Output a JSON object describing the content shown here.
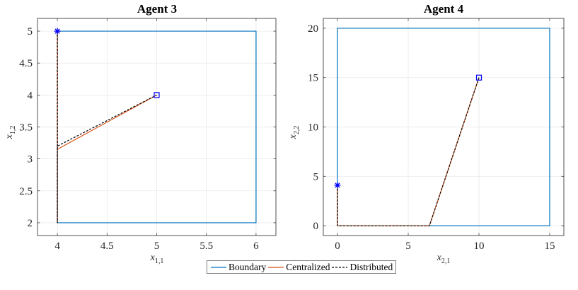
{
  "legend": {
    "items": [
      {
        "label": "Boundary",
        "color": "#0072BD",
        "dash": ""
      },
      {
        "label": "Centralized",
        "color": "#D95319",
        "dash": ""
      },
      {
        "label": "Distributed",
        "color": "#000000",
        "dash": "3,2"
      }
    ]
  },
  "chart_data": [
    {
      "type": "line",
      "title": "Agent 3",
      "xlabel": "x1,1",
      "ylabel": "x1,2",
      "xlim": [
        3.8,
        6.2
      ],
      "ylim": [
        1.8,
        5.2
      ],
      "xticks": [
        4,
        4.5,
        5,
        5.5,
        6
      ],
      "yticks": [
        2,
        2.5,
        3,
        3.5,
        4,
        4.5,
        5
      ],
      "xticklabels": [
        "4",
        "4.5",
        "5",
        "5.5",
        "6"
      ],
      "yticklabels": [
        "2",
        "2.5",
        "3",
        "3.5",
        "4",
        "4.5",
        "5"
      ],
      "grid": true,
      "series": [
        {
          "name": "Boundary",
          "color": "#0072BD",
          "x": [
            4,
            6,
            6,
            4,
            4
          ],
          "y": [
            2,
            2,
            5,
            5,
            2
          ]
        },
        {
          "name": "Centralized",
          "color": "#D95319",
          "x": [
            4,
            4,
            4,
            5
          ],
          "y": [
            5,
            2,
            3.15,
            4
          ]
        },
        {
          "name": "Distributed",
          "color": "#000000",
          "dash": "3,2",
          "x": [
            4,
            4,
            4,
            5
          ],
          "y": [
            5,
            2,
            3.2,
            4
          ]
        }
      ],
      "start_marker": {
        "x": 4,
        "y": 5,
        "symbol": "asterisk",
        "color": "#0000FF"
      },
      "goal_marker": {
        "x": 5,
        "y": 4,
        "symbol": "square",
        "color": "#0000FF"
      }
    },
    {
      "type": "line",
      "title": "Agent 4",
      "xlabel": "x2,1",
      "ylabel": "x2,2",
      "xlim": [
        -1,
        16
      ],
      "ylim": [
        -1,
        21
      ],
      "xticks": [
        0,
        5,
        10,
        15
      ],
      "yticks": [
        0,
        5,
        10,
        15,
        20
      ],
      "xticklabels": [
        "0",
        "5",
        "10",
        "15"
      ],
      "yticklabels": [
        "0",
        "5",
        "10",
        "15",
        "20"
      ],
      "grid": true,
      "series": [
        {
          "name": "Boundary",
          "color": "#0072BD",
          "x": [
            0,
            15,
            15,
            0,
            0
          ],
          "y": [
            0,
            0,
            20,
            20,
            0
          ]
        },
        {
          "name": "Centralized",
          "color": "#D95319",
          "x": [
            0,
            0,
            6.5,
            10
          ],
          "y": [
            4.1,
            0,
            0,
            15
          ]
        },
        {
          "name": "Distributed",
          "color": "#000000",
          "dash": "3,2",
          "x": [
            0,
            0,
            6.5,
            10
          ],
          "y": [
            4.1,
            0,
            0,
            15
          ]
        }
      ],
      "start_marker": {
        "x": 0,
        "y": 4.1,
        "symbol": "asterisk",
        "color": "#0000FF"
      },
      "goal_marker": {
        "x": 10,
        "y": 15,
        "symbol": "square",
        "color": "#0000FF"
      }
    }
  ]
}
